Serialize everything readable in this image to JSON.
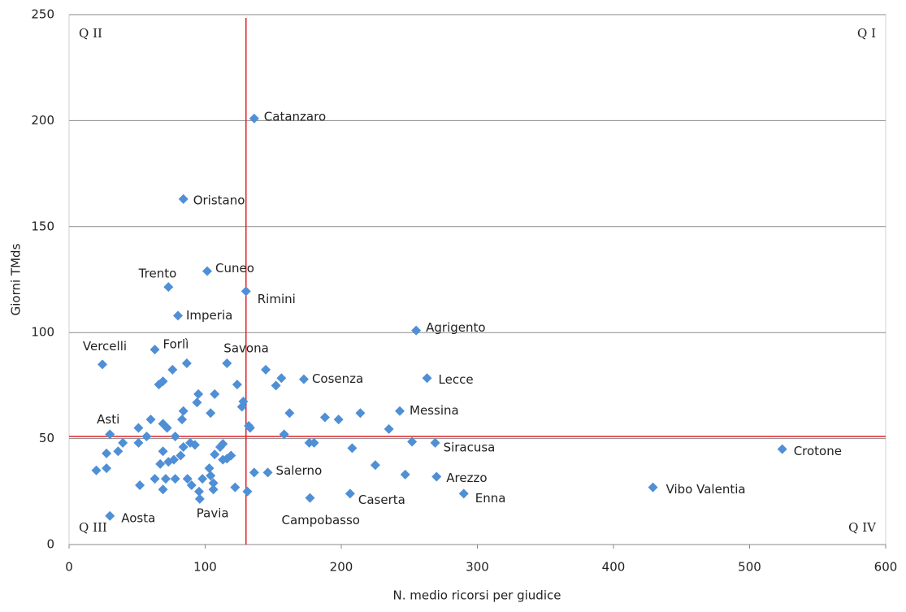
{
  "chart_data": {
    "type": "scatter",
    "xlabel": "N. medio ricorsi per giudice",
    "ylabel": "Giorni TMds",
    "xlim": [
      0,
      600
    ],
    "xticks": [
      0,
      100,
      200,
      300,
      400,
      500,
      600
    ],
    "ylim": [
      0,
      250
    ],
    "yticks": [
      0,
      50,
      100,
      150,
      200,
      250
    ],
    "grid": true,
    "color": "#4f8fd6",
    "reference_lines": {
      "x": 130,
      "y": 51,
      "color": "#e0202a"
    },
    "annotations": [
      {
        "text": "Q II",
        "corner": "top-left"
      },
      {
        "text": "Q I",
        "corner": "top-right"
      },
      {
        "text": "Q III",
        "corner": "bottom-left"
      },
      {
        "text": "Q IV",
        "corner": "bottom-right"
      }
    ],
    "labels": [
      "Catanzaro",
      "Oristano",
      "Cuneo",
      "Trento",
      "Rimini",
      "Imperia",
      "Agrigento",
      "Vercelli",
      "Forlì",
      "Savona",
      "Cosenza",
      "Lecce",
      "Messina",
      "Asti",
      "Siracusa",
      "Crotone",
      "Arezzo",
      "Enna",
      "Vibo Valentia",
      "Caserta",
      "Campobasso",
      "Salerno",
      "Pavia",
      "Aosta",
      null,
      null,
      null,
      null,
      null,
      null,
      null,
      null,
      null,
      null,
      null,
      null,
      null,
      null,
      null,
      null,
      null,
      null,
      null,
      null,
      null,
      null,
      null,
      null,
      null,
      null,
      null,
      null,
      null,
      null,
      null,
      null,
      null,
      null,
      null,
      null,
      null,
      null,
      null,
      null,
      null,
      null,
      null,
      null,
      null,
      null,
      null,
      null,
      null,
      null,
      null,
      null,
      null,
      null,
      null,
      null,
      null,
      null,
      null,
      null,
      null,
      null,
      null,
      null,
      null,
      null
    ],
    "x": [
      136,
      84,
      101.5,
      73,
      130,
      80,
      255,
      24.5,
      63,
      116,
      172.5,
      263,
      243,
      30,
      269,
      524,
      270,
      290,
      429,
      206.5,
      177,
      146,
      96,
      30,
      51,
      20,
      27.5,
      27.5,
      36,
      39.5,
      51,
      57,
      60,
      52,
      63,
      67,
      69,
      69,
      72,
      66,
      69,
      76,
      83,
      84,
      86.5,
      95,
      94,
      107,
      104,
      73,
      77,
      71,
      69,
      78,
      78,
      84,
      82,
      87,
      90,
      89,
      92.5,
      98,
      95.5,
      103,
      104,
      106,
      106,
      107,
      111,
      113,
      113,
      116,
      119,
      122,
      123.5,
      127,
      128,
      132,
      133,
      131,
      136,
      144.5,
      152,
      156,
      162,
      158,
      176.5,
      180,
      188,
      198,
      214,
      208,
      225,
      235,
      247,
      252
    ],
    "values": [
      201,
      163,
      129,
      121.5,
      119.5,
      108,
      101,
      85,
      92,
      85.5,
      78,
      78.5,
      63,
      52,
      48,
      45,
      32,
      24,
      27,
      24,
      22,
      34,
      21.5,
      13.5,
      55,
      35,
      36,
      43,
      44,
      48,
      48,
      51,
      59,
      28,
      31,
      38,
      44,
      57,
      55,
      75.5,
      77,
      82.5,
      59,
      63,
      85.5,
      71,
      67,
      71,
      62,
      39,
      40,
      31,
      26,
      31,
      51,
      46,
      42,
      31,
      28,
      48,
      47,
      31,
      25,
      36,
      32.5,
      29,
      26,
      42.5,
      46,
      47.5,
      40,
      40.5,
      42,
      27,
      75.5,
      65,
      67.5,
      56,
      55,
      25,
      34,
      82.5,
      75,
      78.5,
      62,
      52,
      48,
      48,
      60,
      59,
      62,
      45.5,
      37.5,
      54.5,
      33,
      48.5
    ]
  }
}
